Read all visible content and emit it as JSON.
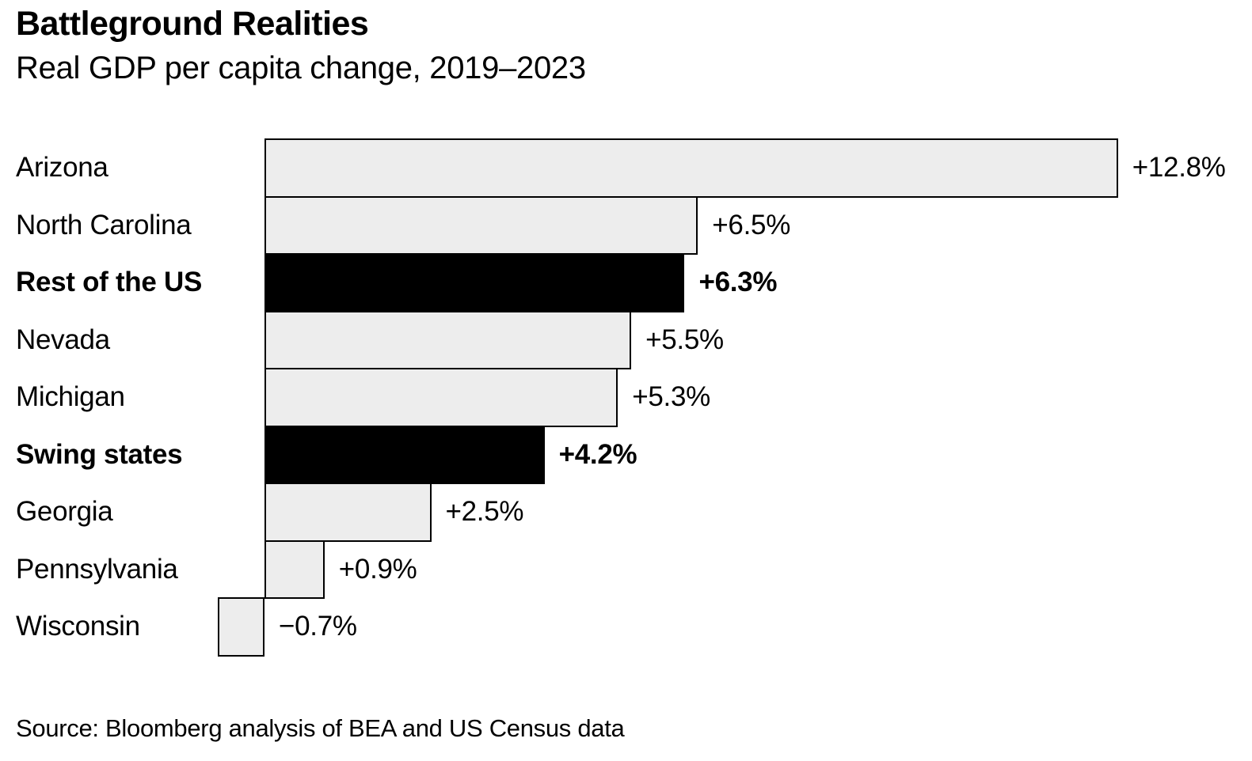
{
  "chart_data": {
    "type": "bar",
    "orientation": "horizontal",
    "title": "Battleground Realities",
    "subtitle": "Real GDP per capita change, 2019–2023",
    "source": "Source: Bloomberg analysis of BEA and US Census data",
    "unit": "%",
    "xlim": [
      -0.7,
      12.8
    ],
    "grid": false,
    "legend": "none",
    "categories": [
      "Arizona",
      "North Carolina",
      "Rest of the US",
      "Nevada",
      "Michigan",
      "Swing states",
      "Georgia",
      "Pennsylvania",
      "Wisconsin"
    ],
    "values": [
      12.8,
      6.5,
      6.3,
      5.5,
      5.3,
      4.2,
      2.5,
      0.9,
      -0.7
    ],
    "value_labels": [
      "+12.8%",
      "+6.5%",
      "+6.3%",
      "+5.5%",
      "+5.3%",
      "+4.2%",
      "+2.5%",
      "+0.9%",
      "−0.7%"
    ],
    "emphasized": [
      false,
      false,
      true,
      false,
      false,
      true,
      false,
      false,
      false
    ],
    "colors": {
      "bar_fill": "#ededed",
      "bar_emphasis": "#000000",
      "bar_border": "#000000",
      "text": "#000000",
      "background": "#ffffff"
    }
  }
}
